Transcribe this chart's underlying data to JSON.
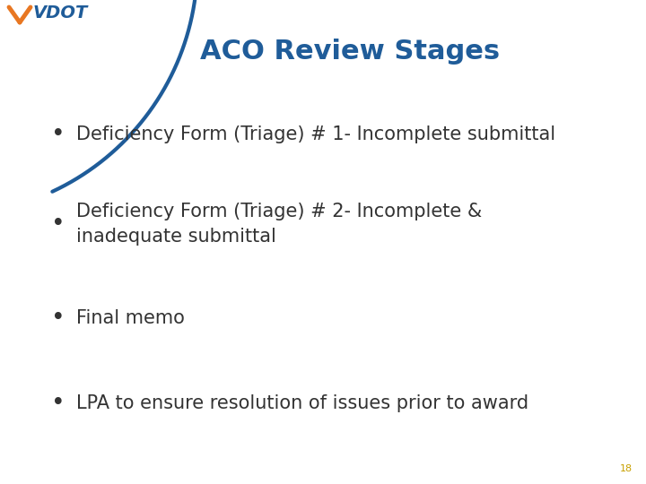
{
  "title": "ACO Review Stages",
  "title_color": "#1F5C99",
  "title_fontsize": 22,
  "background_color": "#FFFFFF",
  "bullet_points": [
    "Deficiency Form (Triage) # 1- Incomplete submittal",
    "Deficiency Form (Triage) # 2- Incomplete &\ninadequate submittal",
    "Final memo",
    "LPA to ensure resolution of issues prior to award"
  ],
  "bullet_fontsize": 15,
  "bullet_color": "#333333",
  "page_number": "18",
  "page_number_color": "#C8A000",
  "page_number_fontsize": 8,
  "arc_color": "#1F5C99",
  "arc_linewidth": 3.0,
  "vdot_v_color": "#E87722",
  "vdot_text_color": "#1F5C99"
}
